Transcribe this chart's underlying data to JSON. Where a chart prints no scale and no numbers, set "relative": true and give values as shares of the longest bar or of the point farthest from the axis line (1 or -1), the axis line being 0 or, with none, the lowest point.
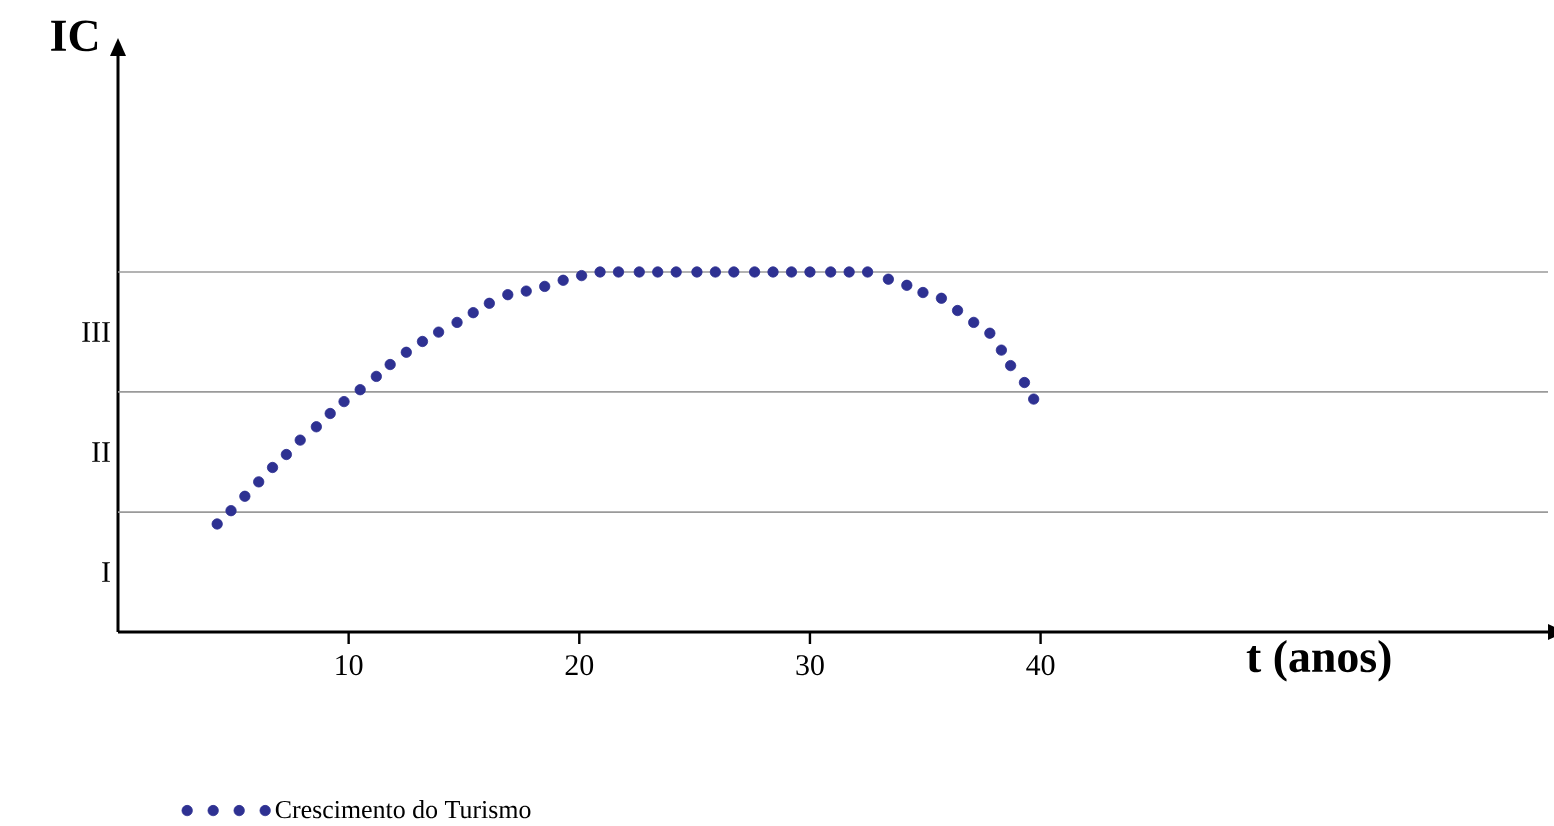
{
  "chart_data": {
    "type": "scatter",
    "relative": true,
    "xlabel": "t (anos)",
    "ylabel": "IC",
    "xlim": [
      0,
      62
    ],
    "xticks": [
      10,
      20,
      30,
      40
    ],
    "ref_lines": [
      {
        "axis": "y",
        "value": 0.333,
        "color": "#9a9a9a"
      },
      {
        "axis": "y",
        "value": 0.667,
        "color": "#9a9a9a"
      },
      {
        "axis": "y",
        "value": 1,
        "color": "#9a9a9a"
      }
    ],
    "annotations": [
      "I",
      "II",
      "III"
    ],
    "marker": "circle",
    "legend": "bottom",
    "series": [
      {
        "name": "Crescimento do Turismo",
        "color": "#2e3192",
        "x": [
          4.3,
          4.9,
          5.5,
          6.1,
          6.7,
          7.3,
          7.9,
          8.6,
          9.2,
          9.8,
          10.5,
          11.2,
          11.8,
          12.5,
          13.2,
          13.9,
          14.7,
          15.4,
          16.1,
          16.9,
          17.7,
          18.5,
          19.3,
          20.1,
          20.9,
          21.7,
          22.6,
          23.4,
          24.2,
          25.1,
          25.9,
          26.7,
          27.6,
          28.4,
          29.2,
          30.0,
          30.9,
          31.7,
          32.5,
          33.4,
          34.2,
          34.9,
          35.7,
          36.4,
          37.1,
          37.8,
          38.3,
          38.7,
          39.3,
          39.7
        ],
        "values": [
          0.3,
          0.337,
          0.377,
          0.417,
          0.457,
          0.493,
          0.533,
          0.57,
          0.607,
          0.64,
          0.673,
          0.71,
          0.743,
          0.777,
          0.807,
          0.833,
          0.86,
          0.887,
          0.913,
          0.937,
          0.947,
          0.96,
          0.977,
          0.99,
          1,
          1,
          1,
          1,
          1,
          1,
          1,
          1,
          1,
          1,
          1,
          1,
          1,
          1,
          1,
          0.98,
          0.963,
          0.943,
          0.927,
          0.893,
          0.86,
          0.83,
          0.783,
          0.74,
          0.693,
          0.647
        ]
      }
    ]
  }
}
